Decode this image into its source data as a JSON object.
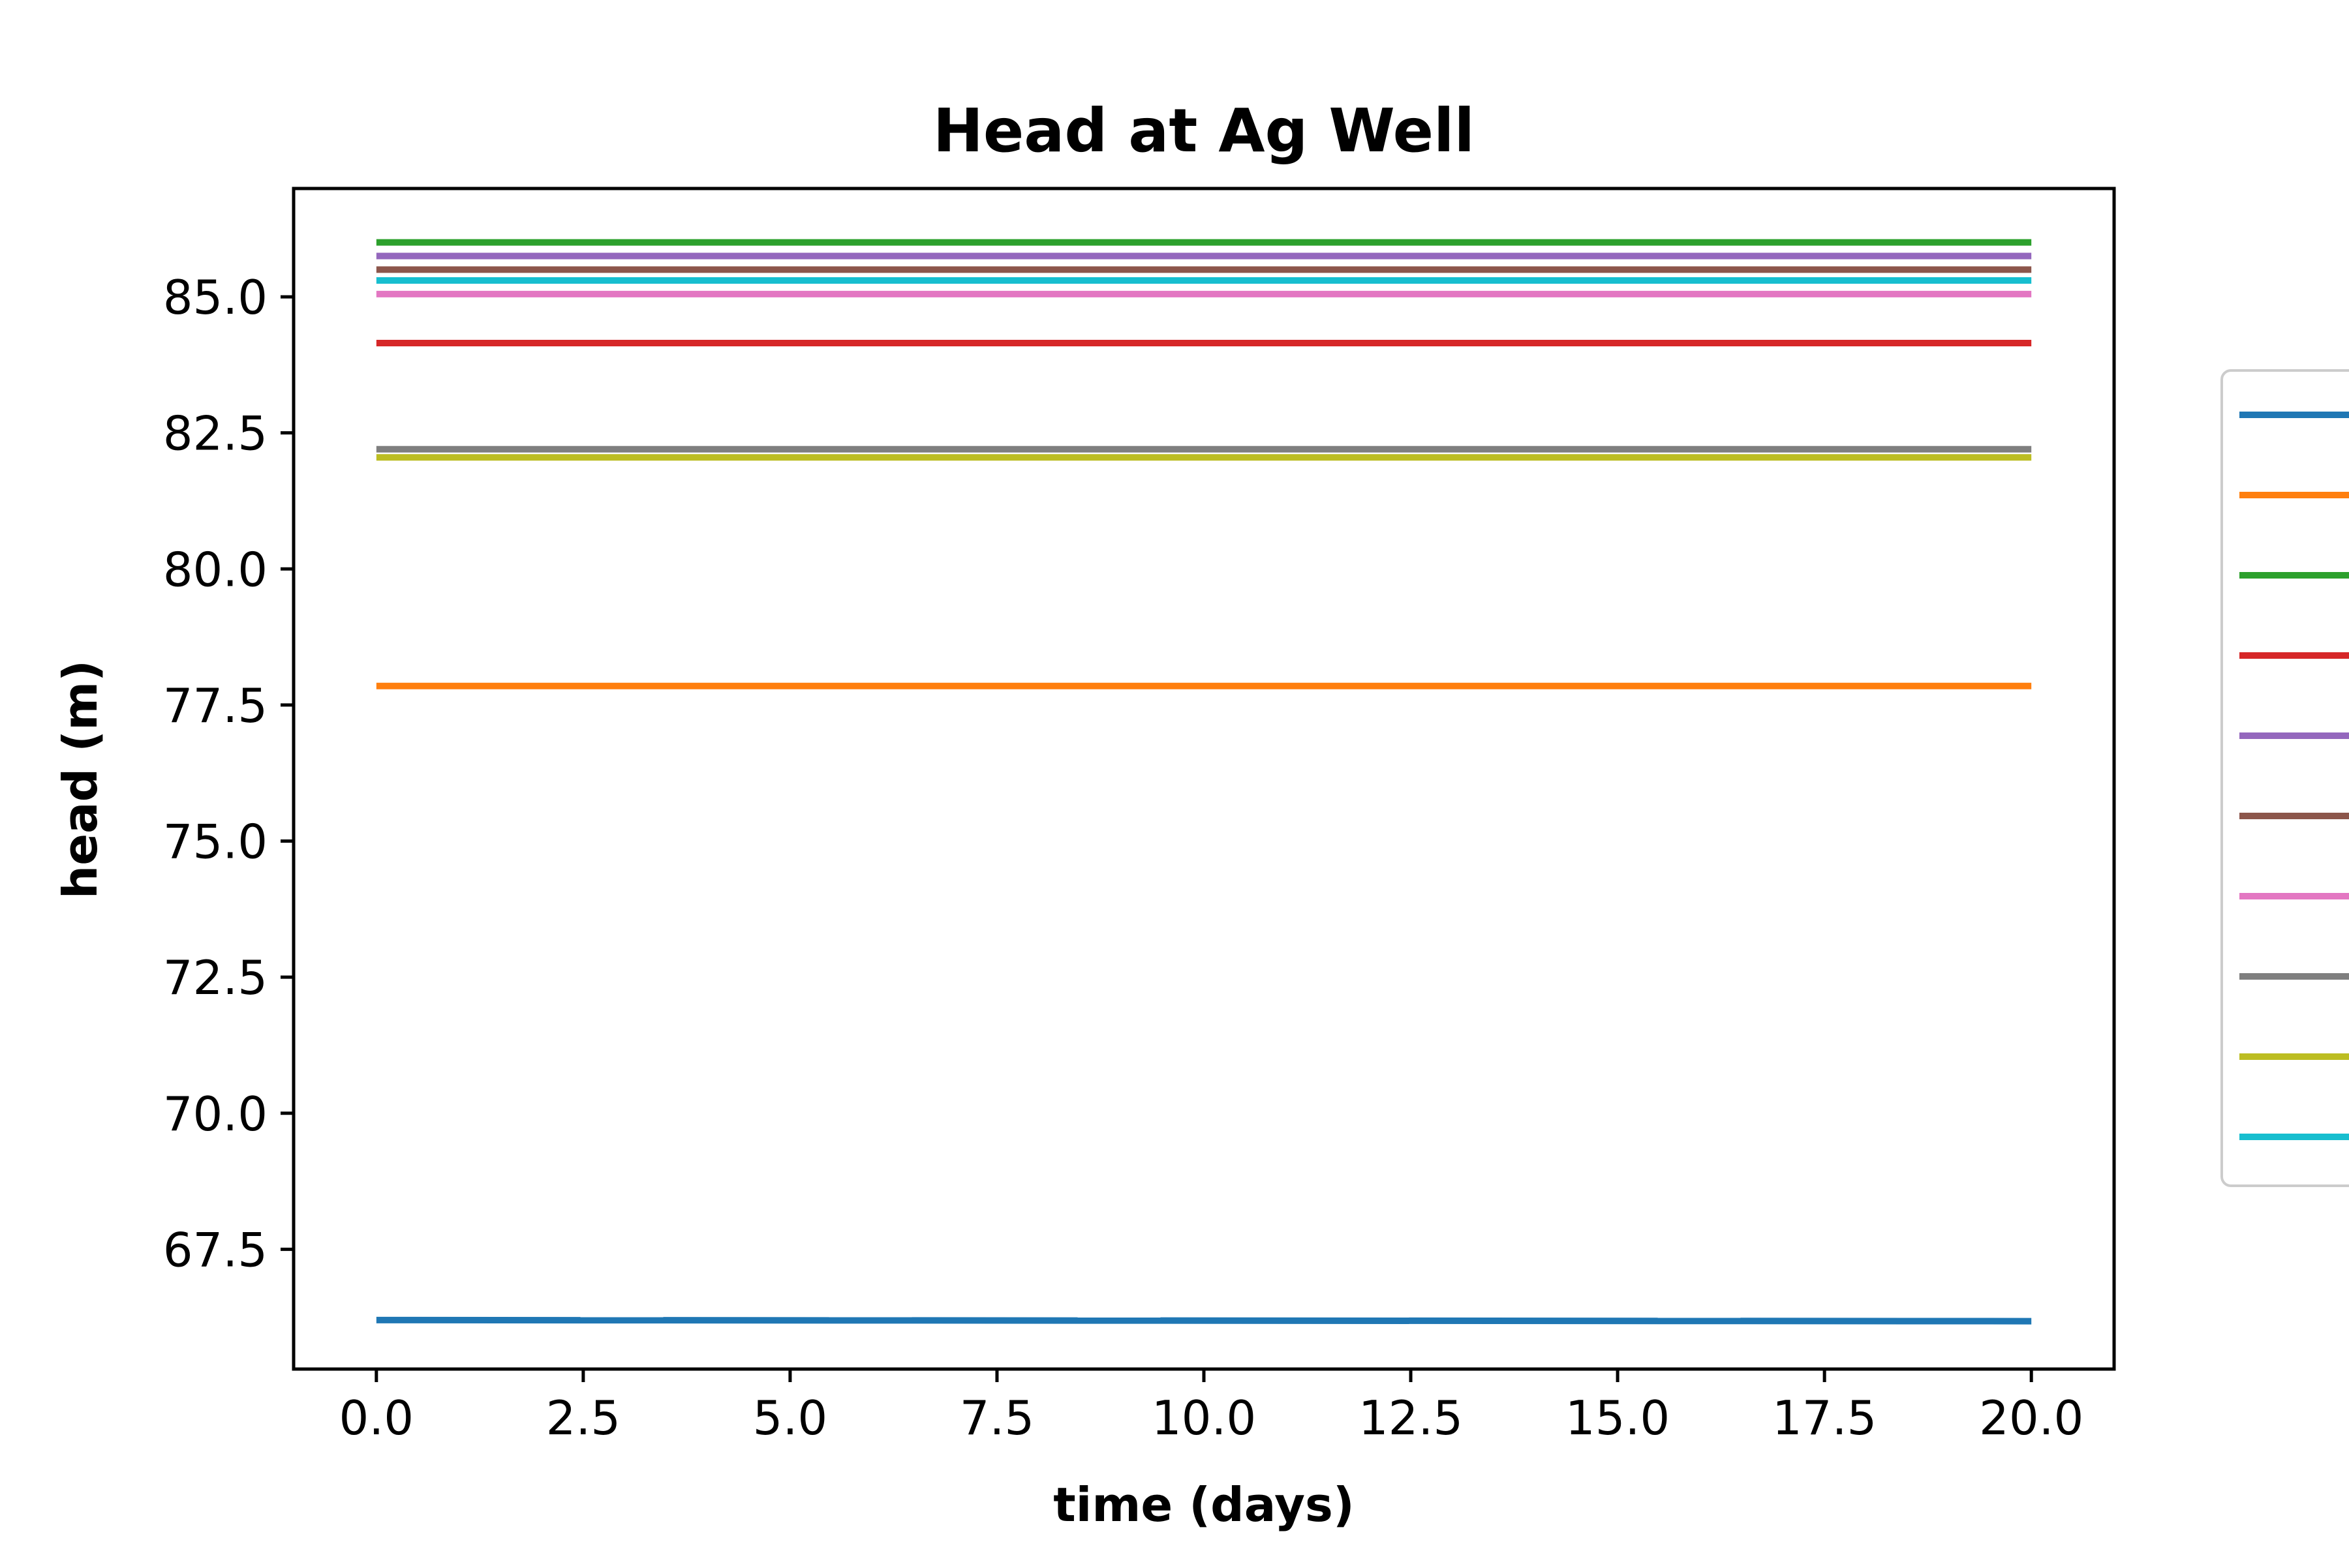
{
  "chart_data": {
    "type": "line",
    "title": "Head at Ag Well",
    "xlabel": "time (days)",
    "ylabel": "head (m)",
    "xlim": [
      -1.0,
      21.0
    ],
    "ylim": [
      65.3,
      86.99
    ],
    "x_ticks": [
      "0.0",
      "2.5",
      "5.0",
      "7.5",
      "10.0",
      "12.5",
      "15.0",
      "17.5",
      "20.0"
    ],
    "y_ticks": [
      "67.5",
      "70.0",
      "72.5",
      "75.0",
      "77.5",
      "80.0",
      "82.5",
      "85.0"
    ],
    "x": [
      0,
      20
    ],
    "grid": false,
    "legend": "outside right, labels not visible",
    "series": [
      {
        "color": "#1f77b4",
        "values": [
          66.2,
          66.18
        ]
      },
      {
        "color": "#ff7f0e",
        "values": [
          77.85,
          77.85
        ]
      },
      {
        "color": "#2ca02c",
        "values": [
          86.0,
          86.0
        ]
      },
      {
        "color": "#d62728",
        "values": [
          84.15,
          84.15
        ]
      },
      {
        "color": "#9467bd",
        "values": [
          85.75,
          85.75
        ]
      },
      {
        "color": "#8c564b",
        "values": [
          85.5,
          85.5
        ]
      },
      {
        "color": "#e377c2",
        "values": [
          85.05,
          85.05
        ]
      },
      {
        "color": "#7f7f7f",
        "values": [
          82.2,
          82.2
        ]
      },
      {
        "color": "#bcbd22",
        "values": [
          82.05,
          82.05
        ]
      },
      {
        "color": "#17becf",
        "values": [
          85.3,
          85.3
        ]
      }
    ]
  }
}
